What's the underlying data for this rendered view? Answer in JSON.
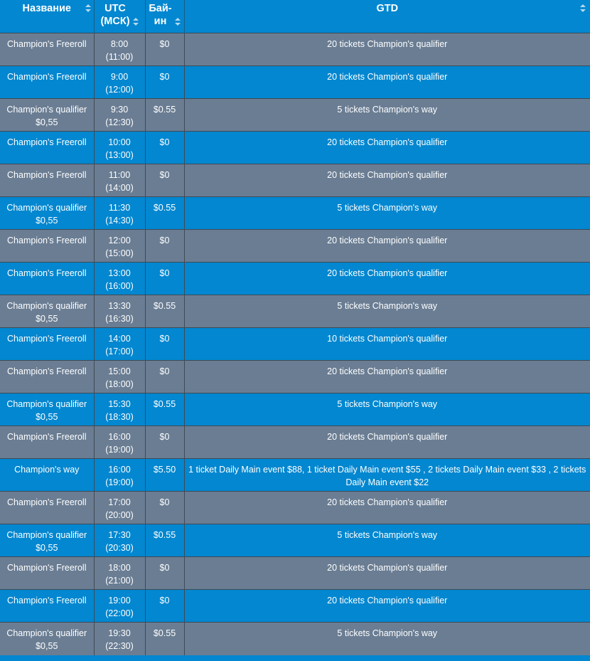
{
  "header": {
    "name": "Название",
    "utc_line1": "UTC",
    "utc_line2": "(МСК)",
    "buyin_line1": "Бай-",
    "buyin_line2": "ин",
    "gtd": "GTD"
  },
  "rows": [
    {
      "name": "Champion's Freeroll",
      "time": "8:00",
      "msk": "(11:00)",
      "buyin": "$0",
      "gtd": "20 tickets Champion's qualifier"
    },
    {
      "name": "Champion's Freeroll",
      "time": "9:00",
      "msk": "(12:00)",
      "buyin": "$0",
      "gtd": "20 tickets Champion's qualifier"
    },
    {
      "name": "Champion's qualifier $0,55",
      "time": "9:30",
      "msk": "(12:30)",
      "buyin": "$0.55",
      "gtd": "5 tickets Champion's way"
    },
    {
      "name": "Champion's Freeroll",
      "time": "10:00",
      "msk": "(13:00)",
      "buyin": "$0",
      "gtd": "20 tickets Champion's qualifier"
    },
    {
      "name": "Champion's Freeroll",
      "time": "11:00",
      "msk": "(14:00)",
      "buyin": "$0",
      "gtd": "20 tickets Champion's qualifier"
    },
    {
      "name": "Champion's qualifier $0,55",
      "time": "11:30",
      "msk": "(14:30)",
      "buyin": "$0.55",
      "gtd": "5 tickets Champion's way"
    },
    {
      "name": "Champion's Freeroll",
      "time": "12:00",
      "msk": "(15:00)",
      "buyin": "$0",
      "gtd": "20 tickets Champion's qualifier"
    },
    {
      "name": "Champion's Freeroll",
      "time": "13:00",
      "msk": "(16:00)",
      "buyin": "$0",
      "gtd": "20 tickets Champion's qualifier"
    },
    {
      "name": "Champion's qualifier $0,55",
      "time": "13:30",
      "msk": "(16:30)",
      "buyin": "$0.55",
      "gtd": "5 tickets Champion's way"
    },
    {
      "name": "Champion's Freeroll",
      "time": "14:00",
      "msk": "(17:00)",
      "buyin": "$0",
      "gtd": "10 tickets Champion's qualifier"
    },
    {
      "name": "Champion's Freeroll",
      "time": "15:00",
      "msk": "(18:00)",
      "buyin": "$0",
      "gtd": "20 tickets Champion's qualifier"
    },
    {
      "name": "Champion's qualifier $0,55",
      "time": "15:30",
      "msk": "(18:30)",
      "buyin": "$0.55",
      "gtd": "5 tickets Champion's way"
    },
    {
      "name": "Champion's Freeroll",
      "time": "16:00",
      "msk": "(19:00)",
      "buyin": "$0",
      "gtd": "20 tickets Champion's qualifier"
    },
    {
      "name": "Champion's way",
      "time": "16:00",
      "msk": "(19:00)",
      "buyin": "$5.50",
      "gtd": "1 ticket Daily Main event $88, 1 ticket Daily Main event $55 , 2 tickets Daily Main event $33 , 2 tickets Daily Main event $22"
    },
    {
      "name": "Champion's Freeroll",
      "time": "17:00",
      "msk": "(20:00)",
      "buyin": "$0",
      "gtd": "20 tickets Champion's qualifier"
    },
    {
      "name": "Champion's qualifier $0,55",
      "time": "17:30",
      "msk": "(20:30)",
      "buyin": "$0.55",
      "gtd": "5 tickets Champion's way"
    },
    {
      "name": "Champion's Freeroll",
      "time": "18:00",
      "msk": "(21:00)",
      "buyin": "$0",
      "gtd": "20 tickets Champion's qualifier"
    },
    {
      "name": "Champion's Freeroll",
      "time": "19:00",
      "msk": "(22:00)",
      "buyin": "$0",
      "gtd": "20 tickets Champion's qualifier"
    },
    {
      "name": "Champion's qualifier $0,55",
      "time": "19:30",
      "msk": "(22:30)",
      "buyin": "$0.55",
      "gtd": "5 tickets Champion's way"
    }
  ],
  "colors": {
    "row_gray": "#6a7d93",
    "row_blue": "#0287d0",
    "text": "#ffffff"
  }
}
